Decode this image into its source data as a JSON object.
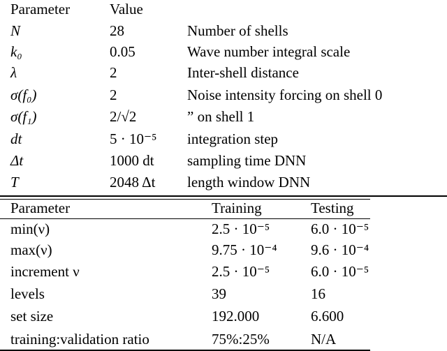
{
  "table1": {
    "header": [
      "Parameter",
      "Value"
    ],
    "rows": [
      [
        "N",
        "28",
        "Number of shells"
      ],
      [
        "k₀",
        "0.05",
        "Wave number integral scale"
      ],
      [
        "λ",
        "2",
        "Inter-shell distance"
      ],
      [
        "σ(f₀)",
        "2",
        "Noise intensity forcing on shell 0"
      ],
      [
        "σ(f₁)",
        "2/√2",
        "” on shell 1"
      ],
      [
        "dt",
        "5 · 10⁻⁵",
        "integration step"
      ],
      [
        "Δt",
        "1000 dt",
        "sampling time DNN"
      ],
      [
        "T",
        "2048 Δt",
        "length window DNN"
      ]
    ]
  },
  "table2": {
    "header": [
      "Parameter",
      "Training",
      "Testing"
    ],
    "rows": [
      [
        "min(ν)",
        "2.5 · 10⁻⁵",
        "6.0 · 10⁻⁵"
      ],
      [
        "max(ν)",
        "9.75 · 10⁻⁴",
        "9.6 · 10⁻⁴"
      ],
      [
        "increment ν",
        "2.5 · 10⁻⁵",
        "6.0 · 10⁻⁵"
      ],
      [
        "levels",
        "39",
        "16"
      ],
      [
        "set size",
        "192.000",
        "6.600"
      ],
      [
        "training:validation ratio",
        "75%:25%",
        "N/A"
      ]
    ]
  }
}
